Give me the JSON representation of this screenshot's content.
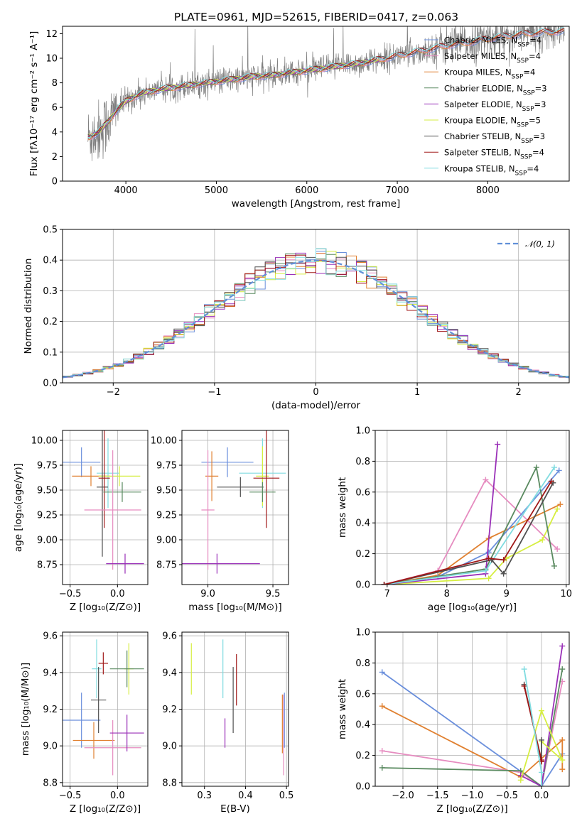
{
  "title": "PLATE=0961, MJD=52615, FIBERID=0417, z=0.063",
  "colors": {
    "Chabrier MILES": "#6a8fdc",
    "Salpeter MILES": "#e68cc0",
    "Kroupa MILES": "#e08030",
    "Chabrier ELODIE": "#5a8a60",
    "Salpeter ELODIE": "#9a30b8",
    "Kroupa ELODIE": "#d6ee40",
    "Chabrier STELIB": "#505050",
    "Salpeter STELIB": "#a01818",
    "Kroupa STELIB": "#80dce0",
    "data": "#808080",
    "gaussian": "#6090d8"
  },
  "chart_data": [
    {
      "type": "line",
      "id": "spectrum",
      "title": "PLATE=0961, MJD=52615, FIBERID=0417, z=0.063",
      "xlabel": "wavelength [Angstrom, rest frame]",
      "ylabel": "Flux [fλ10⁻¹⁷ erg cm⁻² s⁻¹ A⁻¹]",
      "xlim": [
        3300,
        8900
      ],
      "ylim": [
        0,
        12.6
      ],
      "xticks": [
        4000,
        5000,
        6000,
        7000,
        8000
      ],
      "yticks": [
        0,
        2,
        4,
        6,
        8,
        10,
        12
      ],
      "continuum": {
        "x": [
          3600,
          3700,
          3800,
          3900,
          4000,
          4100,
          4200,
          4400,
          4600,
          4800,
          5000,
          5200,
          5400,
          5600,
          5800,
          6000,
          6200,
          6400,
          6600,
          6800,
          7000,
          7200,
          7400,
          7600,
          7800,
          8000,
          8200,
          8400,
          8600,
          8800
        ],
        "y": [
          3.6,
          4.0,
          4.8,
          5.8,
          6.5,
          6.9,
          7.2,
          7.5,
          7.7,
          7.9,
          8.1,
          8.3,
          8.5,
          8.6,
          8.8,
          9.0,
          9.2,
          9.4,
          9.6,
          9.9,
          10.2,
          10.5,
          10.8,
          11.1,
          11.3,
          11.6,
          11.8,
          12.0,
          12.1,
          12.2
        ]
      },
      "legend": [
        {
          "name": "Chabrier MILES",
          "nssp": "4"
        },
        {
          "name": "Salpeter MILES",
          "nssp": "4"
        },
        {
          "name": "Kroupa MILES",
          "nssp": "4"
        },
        {
          "name": "Chabrier ELODIE",
          "nssp": "3"
        },
        {
          "name": "Salpeter ELODIE",
          "nssp": "3"
        },
        {
          "name": "Kroupa ELODIE",
          "nssp": "5"
        },
        {
          "name": "Chabrier STELIB",
          "nssp": "3"
        },
        {
          "name": "Salpeter STELIB",
          "nssp": "4"
        },
        {
          "name": "Kroupa STELIB",
          "nssp": "4"
        }
      ],
      "legend_position": "right"
    },
    {
      "type": "histogram",
      "id": "residuals",
      "xlabel": "(data-model)/error",
      "ylabel": "Normed distribution",
      "xlim": [
        -2.5,
        2.5
      ],
      "ylim": [
        0,
        0.5
      ],
      "xticks": [
        -2,
        -1,
        0,
        1,
        2
      ],
      "yticks": [
        0.0,
        0.1,
        0.2,
        0.3,
        0.4,
        0.5
      ],
      "bin_width": 0.1,
      "gaussian_label": "𝒩(0, 1)",
      "legend_position": "upper right",
      "grid": true
    },
    {
      "type": "errorbar",
      "id": "age-vs-Z",
      "xlabel": "Z [log₁₀(Z/Z⊙)]",
      "ylabel": "age  [log₁₀(age/yr)]",
      "xlim": [
        -0.58,
        0.32
      ],
      "ylim": [
        8.55,
        10.1
      ],
      "xticks": [
        -0.5,
        0.0
      ],
      "yticks": [
        8.75,
        9.0,
        9.25,
        9.5,
        9.75,
        10.0
      ],
      "points": [
        {
          "model": "Chabrier MILES",
          "x": -0.38,
          "xerr": 0.2,
          "y": 9.78,
          "yerr": 0.15
        },
        {
          "model": "Kroupa MILES",
          "x": -0.28,
          "xerr": 0.2,
          "y": 9.64,
          "yerr": 0.1
        },
        {
          "model": "Kroupa STELIB",
          "x": -0.1,
          "xerr": 0.12,
          "y": 9.67,
          "yerr": 0.35
        },
        {
          "model": "Kroupa ELODIE",
          "x": 0.02,
          "xerr": 0.22,
          "y": 9.64,
          "yerr": 0.1
        },
        {
          "model": "Chabrier STELIB",
          "x": -0.16,
          "xerr": 0.06,
          "y": 9.53,
          "yerr": 0.7
        },
        {
          "model": "Salpeter STELIB",
          "x": -0.14,
          "xerr": 0.06,
          "y": 9.62,
          "yerr": 0.5
        },
        {
          "model": "Chabrier ELODIE",
          "x": 0.05,
          "xerr": 0.2,
          "y": 9.48,
          "yerr": 0.1
        },
        {
          "model": "Salpeter MILES",
          "x": -0.05,
          "xerr": 0.3,
          "y": 9.3,
          "yerr": 0.6
        },
        {
          "model": "Salpeter ELODIE",
          "x": 0.08,
          "xerr": 0.2,
          "y": 8.76,
          "yerr": 0.1
        }
      ]
    },
    {
      "type": "errorbar",
      "id": "age-vs-mass",
      "xlabel": "mass [log₁₀(M/M⊙)]",
      "ylabel": "",
      "xlim": [
        8.8,
        9.62
      ],
      "ylim": [
        8.55,
        10.1
      ],
      "xticks": [
        9.0,
        9.5
      ],
      "yticks": [
        8.75,
        9.0,
        9.25,
        9.5,
        9.75,
        10.0
      ],
      "points": [
        {
          "model": "Chabrier MILES",
          "x": 9.15,
          "xerr": 0.2,
          "y": 9.78,
          "yerr": 0.15
        },
        {
          "model": "Kroupa MILES",
          "x": 9.03,
          "xerr": 0.05,
          "y": 9.64,
          "yerr": 0.25
        },
        {
          "model": "Kroupa STELIB",
          "x": 9.42,
          "xerr": 0.18,
          "y": 9.67,
          "yerr": 0.35
        },
        {
          "model": "Kroupa ELODIE",
          "x": 9.42,
          "xerr": 0.05,
          "y": 9.64,
          "yerr": 0.3
        },
        {
          "model": "Chabrier STELIB",
          "x": 9.25,
          "xerr": 0.18,
          "y": 9.53,
          "yerr": 0.1
        },
        {
          "model": "Salpeter STELIB",
          "x": 9.45,
          "xerr": 0.1,
          "y": 9.62,
          "yerr": 0.5
        },
        {
          "model": "Chabrier ELODIE",
          "x": 9.42,
          "xerr": 0.1,
          "y": 9.48,
          "yerr": 0.1
        },
        {
          "model": "Salpeter MILES",
          "x": 9.0,
          "xerr": 0.05,
          "y": 9.3,
          "yerr": 0.6
        },
        {
          "model": "Salpeter ELODIE",
          "x": 9.07,
          "xerr": 0.33,
          "y": 8.76,
          "yerr": 0.1
        }
      ]
    },
    {
      "type": "line",
      "id": "weight-vs-age",
      "xlabel": "age  [log₁₀(age/yr)]",
      "ylabel": "mass weight",
      "xlim": [
        6.8,
        10.05
      ],
      "ylim": [
        0,
        1
      ],
      "xticks": [
        7,
        8,
        9,
        10
      ],
      "yticks": [
        0.0,
        0.2,
        0.4,
        0.6,
        0.8,
        1.0
      ],
      "series": [
        {
          "model": "Salpeter MILES",
          "x": [
            6.95,
            7.85,
            8.65,
            9.85
          ],
          "y": [
            0.0,
            0.09,
            0.68,
            0.23
          ]
        },
        {
          "model": "Kroupa MILES",
          "x": [
            6.95,
            7.85,
            8.7,
            9.9
          ],
          "y": [
            0.0,
            0.06,
            0.3,
            0.52
          ]
        },
        {
          "model": "Chabrier MILES",
          "x": [
            6.95,
            7.85,
            8.7,
            9.88
          ],
          "y": [
            0.0,
            0.05,
            0.21,
            0.74
          ]
        },
        {
          "model": "Kroupa ELODIE",
          "x": [
            6.95,
            8.7,
            9.0,
            9.6,
            9.85
          ],
          "y": [
            0.0,
            0.04,
            0.17,
            0.29,
            0.49
          ]
        },
        {
          "model": "Chabrier ELODIE",
          "x": [
            6.95,
            8.65,
            9.5,
            9.8
          ],
          "y": [
            0.0,
            0.1,
            0.76,
            0.12
          ]
        },
        {
          "model": "Salpeter ELODIE",
          "x": [
            6.95,
            8.65,
            8.85
          ],
          "y": [
            0.0,
            0.07,
            0.91
          ]
        },
        {
          "model": "Kroupa STELIB",
          "x": [
            6.95,
            8.65,
            9.8
          ],
          "y": [
            0.0,
            0.09,
            0.76
          ]
        },
        {
          "model": "Chabrier STELIB",
          "x": [
            6.95,
            8.75,
            8.95,
            9.78
          ],
          "y": [
            0.0,
            0.16,
            0.07,
            0.66
          ]
        },
        {
          "model": "Salpeter STELIB",
          "x": [
            6.95,
            8.7,
            8.95,
            9.75
          ],
          "y": [
            0.0,
            0.17,
            0.16,
            0.67
          ]
        }
      ]
    },
    {
      "type": "errorbar",
      "id": "mass-vs-Z",
      "xlabel": "Z [log₁₀(Z/Z⊙)]",
      "ylabel": "mass [log₁₀(M/M⊙)]",
      "xlim": [
        -0.58,
        0.32
      ],
      "ylim": [
        8.78,
        9.62
      ],
      "xticks": [
        -0.5,
        0.0
      ],
      "yticks": [
        8.8,
        9.0,
        9.2,
        9.4,
        9.6
      ],
      "points": [
        {
          "model": "Chabrier MILES",
          "x": -0.38,
          "xerr": 0.2,
          "y": 9.14,
          "yerr": 0.15
        },
        {
          "model": "Kroupa MILES",
          "x": -0.25,
          "xerr": 0.22,
          "y": 9.03,
          "yerr": 0.1
        },
        {
          "model": "Salpeter MILES",
          "x": -0.05,
          "xerr": 0.3,
          "y": 8.99,
          "yerr": 0.15
        },
        {
          "model": "Kroupa STELIB",
          "x": -0.22,
          "xerr": 0.05,
          "y": 9.42,
          "yerr": 0.16
        },
        {
          "model": "Kroupa ELODIE",
          "x": 0.12,
          "xerr": 0.05,
          "y": 9.42,
          "yerr": 0.14
        },
        {
          "model": "Chabrier STELIB",
          "x": -0.2,
          "xerr": 0.08,
          "y": 9.25,
          "yerr": 0.18
        },
        {
          "model": "Salpeter STELIB",
          "x": -0.15,
          "xerr": 0.05,
          "y": 9.45,
          "yerr": 0.06
        },
        {
          "model": "Chabrier ELODIE",
          "x": 0.1,
          "xerr": 0.18,
          "y": 9.42,
          "yerr": 0.1
        },
        {
          "model": "Salpeter ELODIE",
          "x": 0.1,
          "xerr": 0.18,
          "y": 9.07,
          "yerr": 0.1
        }
      ]
    },
    {
      "type": "errorbar",
      "id": "mass-vs-ebv",
      "xlabel": "E(B-V)",
      "ylabel": "",
      "xlim": [
        0.245,
        0.505
      ],
      "ylim": [
        8.78,
        9.62
      ],
      "xticks": [
        0.3,
        0.4,
        0.5
      ],
      "yticks": [
        8.8,
        9.0,
        9.2,
        9.4,
        9.6
      ],
      "points": [
        {
          "model": "Kroupa ELODIE",
          "x": 0.268,
          "xerr": 0.0,
          "y": 9.42,
          "yerr": 0.14
        },
        {
          "model": "Kroupa STELIB",
          "x": 0.345,
          "xerr": 0.0,
          "y": 9.42,
          "yerr": 0.16
        },
        {
          "model": "Salpeter ELODIE",
          "x": 0.35,
          "xerr": 0.0,
          "y": 9.07,
          "yerr": 0.08
        },
        {
          "model": "Chabrier STELIB",
          "x": 0.37,
          "xerr": 0.0,
          "y": 9.25,
          "yerr": 0.18
        },
        {
          "model": "Salpeter STELIB",
          "x": 0.378,
          "xerr": 0.0,
          "y": 9.36,
          "yerr": 0.14
        },
        {
          "model": "Kroupa MILES",
          "x": 0.49,
          "xerr": 0.0,
          "y": 9.12,
          "yerr": 0.16
        },
        {
          "model": "Salpeter MILES",
          "x": 0.493,
          "xerr": 0.0,
          "y": 9.06,
          "yerr": 0.22
        },
        {
          "model": "Chabrier MILES",
          "x": 0.495,
          "xerr": 0.0,
          "y": 9.14,
          "yerr": 0.15
        }
      ]
    },
    {
      "type": "line",
      "id": "weight-vs-Z",
      "xlabel": "Z [log₁₀(Z/Z⊙)]",
      "ylabel": "mass weight",
      "xlim": [
        -2.4,
        0.4
      ],
      "ylim": [
        0,
        1
      ],
      "xticks": [
        -2.0,
        -1.5,
        -1.0,
        -0.5,
        0.0
      ],
      "yticks": [
        0.0,
        0.2,
        0.4,
        0.6,
        0.8,
        1.0
      ],
      "series": [
        {
          "model": "Chabrier MILES",
          "x": [
            -2.3,
            0.0,
            0.3
          ],
          "y": [
            0.74,
            0.0,
            0.21
          ]
        },
        {
          "model": "Kroupa MILES",
          "x": [
            -2.3,
            -0.3,
            0.3,
            0.3
          ],
          "y": [
            0.52,
            0.06,
            0.3,
            0.11
          ]
        },
        {
          "model": "Salpeter MILES",
          "x": [
            -2.3,
            -0.3,
            0.0,
            0.3
          ],
          "y": [
            0.23,
            0.09,
            0.0,
            0.68
          ]
        },
        {
          "model": "Chabrier ELODIE",
          "x": [
            -2.3,
            -0.3,
            0.0,
            0.3
          ],
          "y": [
            0.12,
            0.1,
            0.0,
            0.76
          ]
        },
        {
          "model": "Salpeter ELODIE",
          "x": [
            -0.3,
            0.0,
            0.3
          ],
          "y": [
            0.07,
            0.0,
            0.91
          ]
        },
        {
          "model": "Kroupa ELODIE",
          "x": [
            -0.3,
            0.0,
            0.3,
            0.0
          ],
          "y": [
            0.04,
            0.49,
            0.17,
            0.29
          ]
        },
        {
          "model": "Chabrier STELIB",
          "x": [
            -0.25,
            0.0,
            0.0
          ],
          "y": [
            0.66,
            0.16,
            0.3
          ]
        },
        {
          "model": "Salpeter STELIB",
          "x": [
            -0.25,
            0.0,
            0.0
          ],
          "y": [
            0.65,
            0.17,
            0.16
          ]
        },
        {
          "model": "Kroupa STELIB",
          "x": [
            -0.25,
            0.0,
            0.0
          ],
          "y": [
            0.76,
            0.09,
            0.0
          ]
        }
      ]
    }
  ]
}
